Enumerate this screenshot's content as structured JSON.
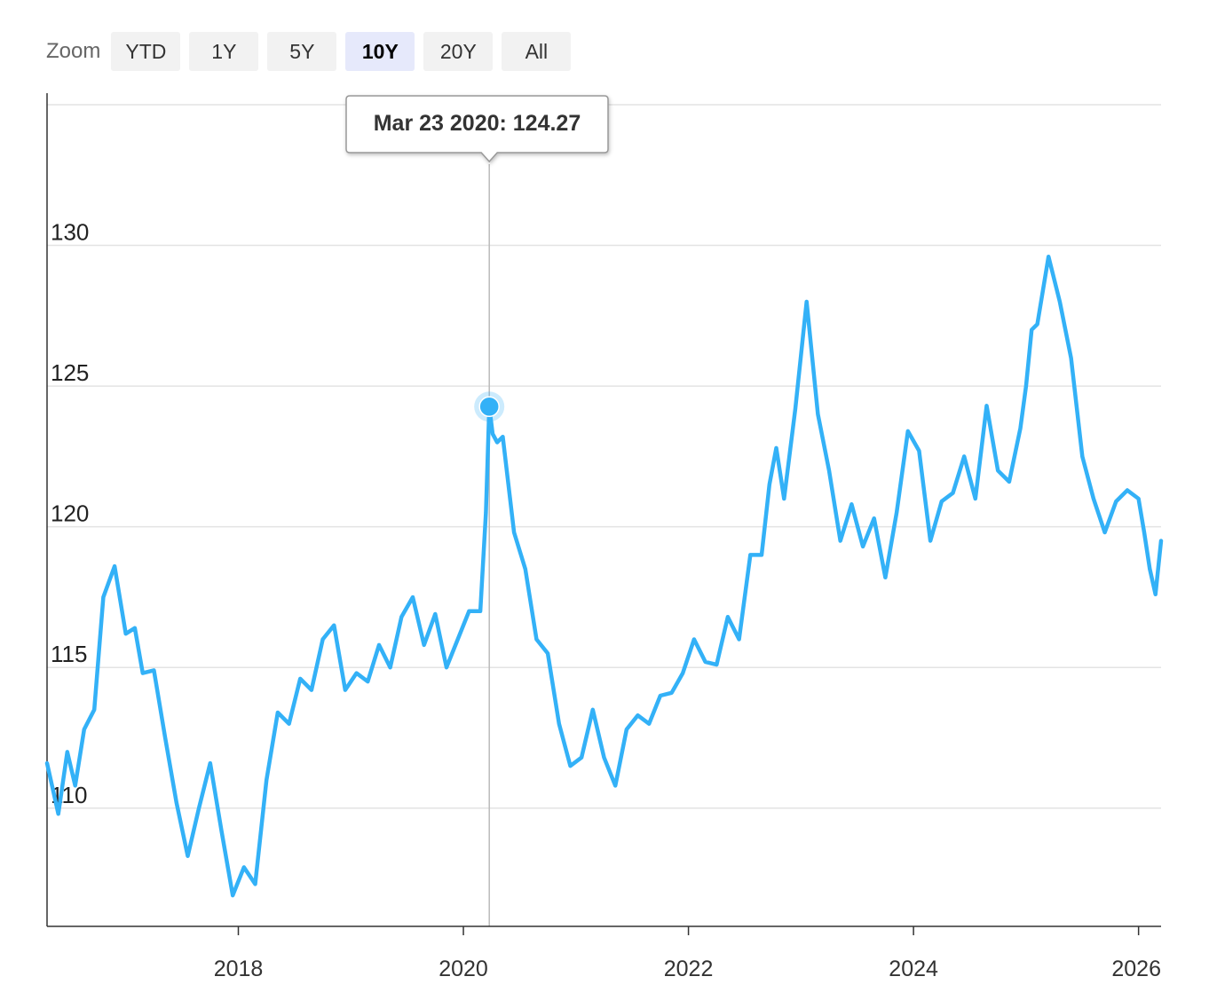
{
  "zoom": {
    "label": "Zoom",
    "buttons": [
      "YTD",
      "1Y",
      "5Y",
      "10Y",
      "20Y",
      "All"
    ],
    "active": "10Y"
  },
  "tooltip": {
    "text": "Mar 23 2020: 124.27"
  },
  "chart_data": {
    "type": "line",
    "title": "",
    "xlabel": "",
    "ylabel": "",
    "x_ticks": [
      "2018",
      "2020",
      "2022",
      "2024",
      "2026"
    ],
    "y_ticks": [
      110,
      115,
      120,
      125,
      130
    ],
    "xlim": [
      2016.3,
      2026.2
    ],
    "ylim": [
      105.8,
      135.0
    ],
    "grid": true,
    "legend": "none",
    "color": "#33b1f7",
    "highlight": {
      "x": 2020.23,
      "y": 124.27
    },
    "series": [
      {
        "x": [
          2016.3,
          2016.4,
          2016.48,
          2016.55,
          2016.63,
          2016.72,
          2016.8,
          2016.9,
          2017.0,
          2017.08,
          2017.15,
          2017.25,
          2017.35,
          2017.45,
          2017.55,
          2017.65,
          2017.75,
          2017.85,
          2017.95,
          2018.05,
          2018.15,
          2018.25,
          2018.35,
          2018.45,
          2018.55,
          2018.65,
          2018.75,
          2018.85,
          2018.95,
          2019.05,
          2019.15,
          2019.25,
          2019.35,
          2019.45,
          2019.55,
          2019.65,
          2019.75,
          2019.85,
          2019.95,
          2020.05,
          2020.15,
          2020.2,
          2020.23,
          2020.26,
          2020.3,
          2020.35,
          2020.45,
          2020.55,
          2020.65,
          2020.75,
          2020.85,
          2020.95,
          2021.05,
          2021.15,
          2021.25,
          2021.35,
          2021.45,
          2021.55,
          2021.65,
          2021.75,
          2021.85,
          2021.95,
          2022.05,
          2022.15,
          2022.25,
          2022.35,
          2022.45,
          2022.55,
          2022.65,
          2022.72,
          2022.78,
          2022.85,
          2022.95,
          2023.05,
          2023.15,
          2023.25,
          2023.35,
          2023.45,
          2023.55,
          2023.65,
          2023.75,
          2023.85,
          2023.95,
          2024.05,
          2024.15,
          2024.25,
          2024.35,
          2024.45,
          2024.55,
          2024.65,
          2024.75,
          2024.85,
          2024.95,
          2025.0,
          2025.05,
          2025.1,
          2025.2,
          2025.3,
          2025.4,
          2025.5,
          2025.6,
          2025.7,
          2025.8,
          2025.9,
          2026.0,
          2026.05,
          2026.1,
          2026.15,
          2026.2
        ],
        "y": [
          111.6,
          109.8,
          112.0,
          110.8,
          112.8,
          113.5,
          117.5,
          118.6,
          116.2,
          116.4,
          114.8,
          114.9,
          112.5,
          110.2,
          108.3,
          110.0,
          111.6,
          109.2,
          106.9,
          107.9,
          107.3,
          111.0,
          113.4,
          113.0,
          114.6,
          114.2,
          116.0,
          116.5,
          114.2,
          114.8,
          114.5,
          115.8,
          115.0,
          116.8,
          117.5,
          115.8,
          116.9,
          115.0,
          116.0,
          117.0,
          117.0,
          120.5,
          124.27,
          123.3,
          123.0,
          123.2,
          119.8,
          118.5,
          116.0,
          115.5,
          113.0,
          111.5,
          111.8,
          113.5,
          111.8,
          110.8,
          112.8,
          113.3,
          113.0,
          114.0,
          114.1,
          114.8,
          116.0,
          115.2,
          115.1,
          116.8,
          116.0,
          119.0,
          119.0,
          121.5,
          122.8,
          121.0,
          124.2,
          128.0,
          124.0,
          122.0,
          119.5,
          120.8,
          119.3,
          120.3,
          118.2,
          120.5,
          123.4,
          122.7,
          119.5,
          120.9,
          121.2,
          122.5,
          121.0,
          124.3,
          122.0,
          121.6,
          123.5,
          125.0,
          127.0,
          127.2,
          129.6,
          128.0,
          126.0,
          122.5,
          121.0,
          119.8,
          120.9,
          121.3,
          121.0,
          119.8,
          118.5,
          117.6,
          119.5
        ]
      }
    ]
  }
}
